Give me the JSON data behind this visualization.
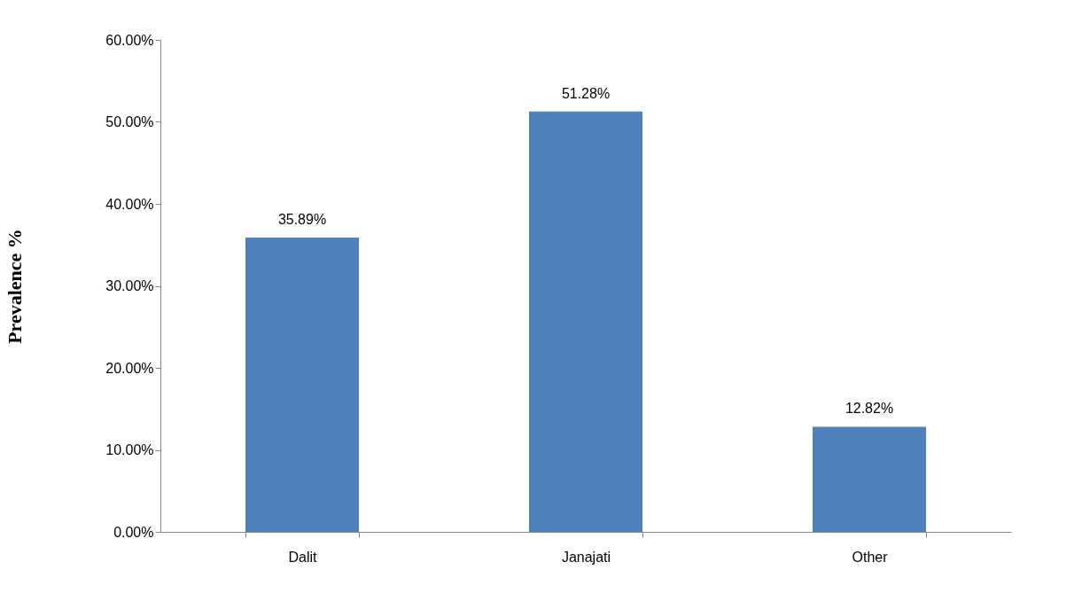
{
  "chart_data": {
    "type": "bar",
    "ylabel": "Prevalence %",
    "categories": [
      "Dalit",
      "Janajati",
      "Other"
    ],
    "values": [
      35.89,
      51.28,
      12.82
    ],
    "color": "#4f81bd",
    "value_labels": [
      "35.89%",
      "51.28%",
      "12.82%"
    ],
    "ylim": [
      0,
      60
    ],
    "yticks": [
      {
        "value": 0,
        "label": "0.00%"
      },
      {
        "value": 10,
        "label": "10.00%"
      },
      {
        "value": 20,
        "label": "20.00%"
      },
      {
        "value": 30,
        "label": "30.00%"
      },
      {
        "value": 40,
        "label": "40.00%"
      },
      {
        "value": 50,
        "label": "50.00%"
      },
      {
        "value": 60,
        "label": "60.00%"
      }
    ],
    "grid": false
  }
}
